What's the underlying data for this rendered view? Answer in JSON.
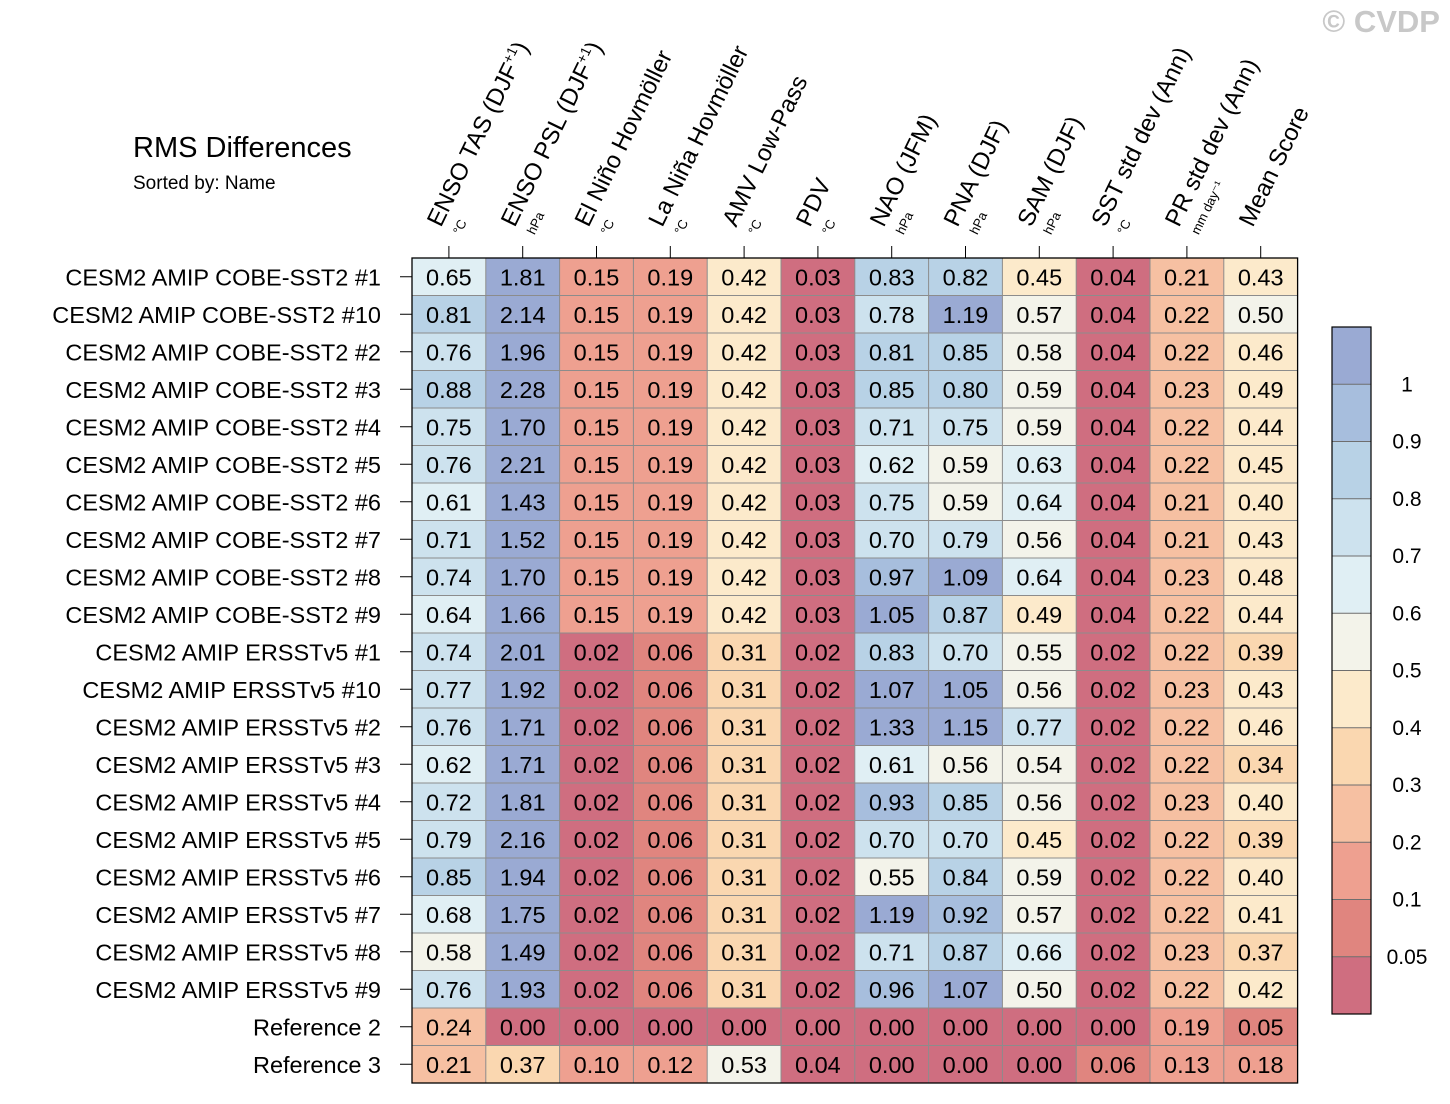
{
  "title": "RMS Differences",
  "subtitle": "Sorted by: Name",
  "watermark": "© CVDP",
  "chart_data": {
    "type": "heatmap",
    "columns": [
      {
        "label": "ENSO TAS (DJF",
        "sup": "+1",
        "close": ")",
        "unit": "°C"
      },
      {
        "label": "ENSO PSL (DJF",
        "sup": "+1",
        "close": ")",
        "unit": "hPa"
      },
      {
        "label": "El Niño Hovmöller",
        "sup": "",
        "close": "",
        "unit": "°C"
      },
      {
        "label": "La Niña Hovmöller",
        "sup": "",
        "close": "",
        "unit": "°C"
      },
      {
        "label": "AMV Low-Pass",
        "sup": "",
        "close": "",
        "unit": "°C"
      },
      {
        "label": "PDV",
        "sup": "",
        "close": "",
        "unit": "°C"
      },
      {
        "label": "NAO (JFM)",
        "sup": "",
        "close": "",
        "unit": "hPa"
      },
      {
        "label": "PNA (DJF)",
        "sup": "",
        "close": "",
        "unit": "hPa"
      },
      {
        "label": "SAM (DJF)",
        "sup": "",
        "close": "",
        "unit": "hPa"
      },
      {
        "label": "SST std dev (Ann)",
        "sup": "",
        "close": "",
        "unit": "°C"
      },
      {
        "label": "PR std dev (Ann)",
        "sup": "",
        "close": "",
        "unit": "mm day⁻¹"
      },
      {
        "label": "Mean Score",
        "sup": "",
        "close": "",
        "unit": ""
      }
    ],
    "rows": [
      "CESM2 AMIP COBE-SST2 #1",
      "CESM2 AMIP COBE-SST2 #10",
      "CESM2 AMIP COBE-SST2 #2",
      "CESM2 AMIP COBE-SST2 #3",
      "CESM2 AMIP COBE-SST2 #4",
      "CESM2 AMIP COBE-SST2 #5",
      "CESM2 AMIP COBE-SST2 #6",
      "CESM2 AMIP COBE-SST2 #7",
      "CESM2 AMIP COBE-SST2 #8",
      "CESM2 AMIP COBE-SST2 #9",
      "CESM2 AMIP ERSSTv5 #1",
      "CESM2 AMIP ERSSTv5 #10",
      "CESM2 AMIP ERSSTv5 #2",
      "CESM2 AMIP ERSSTv5 #3",
      "CESM2 AMIP ERSSTv5 #4",
      "CESM2 AMIP ERSSTv5 #5",
      "CESM2 AMIP ERSSTv5 #6",
      "CESM2 AMIP ERSSTv5 #7",
      "CESM2 AMIP ERSSTv5 #8",
      "CESM2 AMIP ERSSTv5 #9",
      "Reference 2",
      "Reference 3"
    ],
    "values": [
      [
        "0.65",
        "1.81",
        "0.15",
        "0.19",
        "0.42",
        "0.03",
        "0.83",
        "0.82",
        "0.45",
        "0.04",
        "0.21",
        "0.43"
      ],
      [
        "0.81",
        "2.14",
        "0.15",
        "0.19",
        "0.42",
        "0.03",
        "0.78",
        "1.19",
        "0.57",
        "0.04",
        "0.22",
        "0.50"
      ],
      [
        "0.76",
        "1.96",
        "0.15",
        "0.19",
        "0.42",
        "0.03",
        "0.81",
        "0.85",
        "0.58",
        "0.04",
        "0.22",
        "0.46"
      ],
      [
        "0.88",
        "2.28",
        "0.15",
        "0.19",
        "0.42",
        "0.03",
        "0.85",
        "0.80",
        "0.59",
        "0.04",
        "0.23",
        "0.49"
      ],
      [
        "0.75",
        "1.70",
        "0.15",
        "0.19",
        "0.42",
        "0.03",
        "0.71",
        "0.75",
        "0.59",
        "0.04",
        "0.22",
        "0.44"
      ],
      [
        "0.76",
        "2.21",
        "0.15",
        "0.19",
        "0.42",
        "0.03",
        "0.62",
        "0.59",
        "0.63",
        "0.04",
        "0.22",
        "0.45"
      ],
      [
        "0.61",
        "1.43",
        "0.15",
        "0.19",
        "0.42",
        "0.03",
        "0.75",
        "0.59",
        "0.64",
        "0.04",
        "0.21",
        "0.40"
      ],
      [
        "0.71",
        "1.52",
        "0.15",
        "0.19",
        "0.42",
        "0.03",
        "0.70",
        "0.79",
        "0.56",
        "0.04",
        "0.21",
        "0.43"
      ],
      [
        "0.74",
        "1.70",
        "0.15",
        "0.19",
        "0.42",
        "0.03",
        "0.97",
        "1.09",
        "0.64",
        "0.04",
        "0.23",
        "0.48"
      ],
      [
        "0.64",
        "1.66",
        "0.15",
        "0.19",
        "0.42",
        "0.03",
        "1.05",
        "0.87",
        "0.49",
        "0.04",
        "0.22",
        "0.44"
      ],
      [
        "0.74",
        "2.01",
        "0.02",
        "0.06",
        "0.31",
        "0.02",
        "0.83",
        "0.70",
        "0.55",
        "0.02",
        "0.22",
        "0.39"
      ],
      [
        "0.77",
        "1.92",
        "0.02",
        "0.06",
        "0.31",
        "0.02",
        "1.07",
        "1.05",
        "0.56",
        "0.02",
        "0.23",
        "0.43"
      ],
      [
        "0.76",
        "1.71",
        "0.02",
        "0.06",
        "0.31",
        "0.02",
        "1.33",
        "1.15",
        "0.77",
        "0.02",
        "0.22",
        "0.46"
      ],
      [
        "0.62",
        "1.71",
        "0.02",
        "0.06",
        "0.31",
        "0.02",
        "0.61",
        "0.56",
        "0.54",
        "0.02",
        "0.22",
        "0.34"
      ],
      [
        "0.72",
        "1.81",
        "0.02",
        "0.06",
        "0.31",
        "0.02",
        "0.93",
        "0.85",
        "0.56",
        "0.02",
        "0.23",
        "0.40"
      ],
      [
        "0.79",
        "2.16",
        "0.02",
        "0.06",
        "0.31",
        "0.02",
        "0.70",
        "0.70",
        "0.45",
        "0.02",
        "0.22",
        "0.39"
      ],
      [
        "0.85",
        "1.94",
        "0.02",
        "0.06",
        "0.31",
        "0.02",
        "0.55",
        "0.84",
        "0.59",
        "0.02",
        "0.22",
        "0.40"
      ],
      [
        "0.68",
        "1.75",
        "0.02",
        "0.06",
        "0.31",
        "0.02",
        "1.19",
        "0.92",
        "0.57",
        "0.02",
        "0.22",
        "0.41"
      ],
      [
        "0.58",
        "1.49",
        "0.02",
        "0.06",
        "0.31",
        "0.02",
        "0.71",
        "0.87",
        "0.66",
        "0.02",
        "0.23",
        "0.37"
      ],
      [
        "0.76",
        "1.93",
        "0.02",
        "0.06",
        "0.31",
        "0.02",
        "0.96",
        "1.07",
        "0.50",
        "0.02",
        "0.22",
        "0.42"
      ],
      [
        "0.24",
        "0.00",
        "0.00",
        "0.00",
        "0.00",
        "0.00",
        "0.00",
        "0.00",
        "0.00",
        "0.00",
        "0.19",
        "0.05"
      ],
      [
        "0.21",
        "0.37",
        "0.10",
        "0.12",
        "0.53",
        "0.04",
        "0.00",
        "0.00",
        "0.00",
        "0.06",
        "0.13",
        "0.18"
      ]
    ],
    "colorbar": {
      "labels": [
        "1",
        "0.9",
        "0.8",
        "0.7",
        "0.6",
        "0.5",
        "0.4",
        "0.3",
        "0.2",
        "0.1",
        "0.05"
      ],
      "thresholds": [
        1,
        0.9,
        0.8,
        0.7,
        0.6,
        0.5,
        0.4,
        0.3,
        0.2,
        0.1,
        0.05
      ],
      "colors": [
        "#9aaad3",
        "#a7bedd",
        "#b8d2e6",
        "#cde2ee",
        "#e0eff4",
        "#f3f3ea",
        "#fceacb",
        "#fad7b0",
        "#f6c0a2",
        "#eea090",
        "#e0857f",
        "#cf6e80"
      ]
    }
  }
}
